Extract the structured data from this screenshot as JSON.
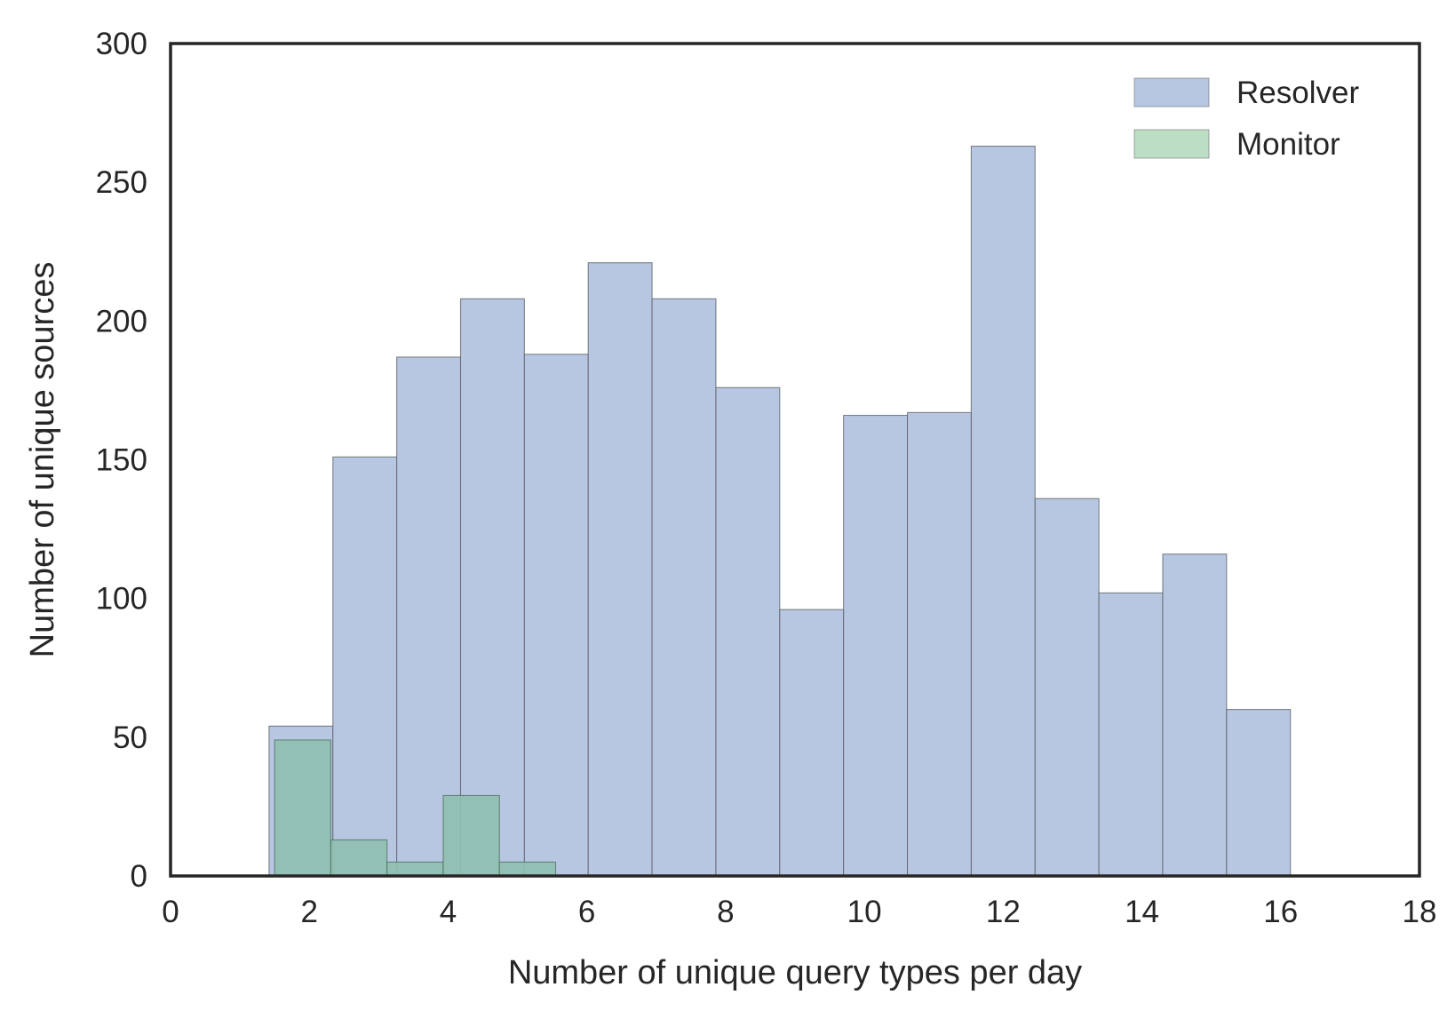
{
  "chart_data": {
    "type": "bar",
    "subtype": "histogram-overlay",
    "title": "",
    "xlabel": "Number of unique query types per day",
    "ylabel": "Number of unique sources",
    "xlim": [
      0,
      18
    ],
    "ylim": [
      0,
      300
    ],
    "xticks": [
      0,
      2,
      4,
      6,
      8,
      10,
      12,
      14,
      16,
      18
    ],
    "yticks": [
      0,
      50,
      100,
      150,
      200,
      250,
      300
    ],
    "grid": false,
    "legend": "top-right",
    "series": [
      {
        "name": "Resolver",
        "color": "#b8c7e1",
        "bins": [
          {
            "x0": 1.42,
            "x1": 2.34,
            "value": 54
          },
          {
            "x0": 2.34,
            "x1": 3.26,
            "value": 151
          },
          {
            "x0": 3.26,
            "x1": 4.18,
            "value": 187
          },
          {
            "x0": 4.18,
            "x1": 5.1,
            "value": 208
          },
          {
            "x0": 5.1,
            "x1": 6.02,
            "value": 188
          },
          {
            "x0": 6.02,
            "x1": 6.94,
            "value": 221
          },
          {
            "x0": 6.94,
            "x1": 7.86,
            "value": 208
          },
          {
            "x0": 7.86,
            "x1": 8.78,
            "value": 176
          },
          {
            "x0": 8.78,
            "x1": 9.7,
            "value": 96
          },
          {
            "x0": 9.7,
            "x1": 10.62,
            "value": 166
          },
          {
            "x0": 10.62,
            "x1": 11.54,
            "value": 167
          },
          {
            "x0": 11.54,
            "x1": 12.46,
            "value": 263
          },
          {
            "x0": 12.46,
            "x1": 13.38,
            "value": 136
          },
          {
            "x0": 13.38,
            "x1": 14.3,
            "value": 102
          },
          {
            "x0": 14.3,
            "x1": 15.22,
            "value": 116
          },
          {
            "x0": 15.22,
            "x1": 16.14,
            "value": 60
          }
        ]
      },
      {
        "name": "Monitor",
        "color": "#8fbfb0",
        "legend_color": "#bcdfc4",
        "bins": [
          {
            "x0": 1.5,
            "x1": 2.31,
            "value": 49
          },
          {
            "x0": 2.31,
            "x1": 3.12,
            "value": 13
          },
          {
            "x0": 3.12,
            "x1": 3.93,
            "value": 5
          },
          {
            "x0": 3.93,
            "x1": 4.74,
            "value": 29
          },
          {
            "x0": 4.74,
            "x1": 5.55,
            "value": 5
          }
        ]
      }
    ]
  }
}
